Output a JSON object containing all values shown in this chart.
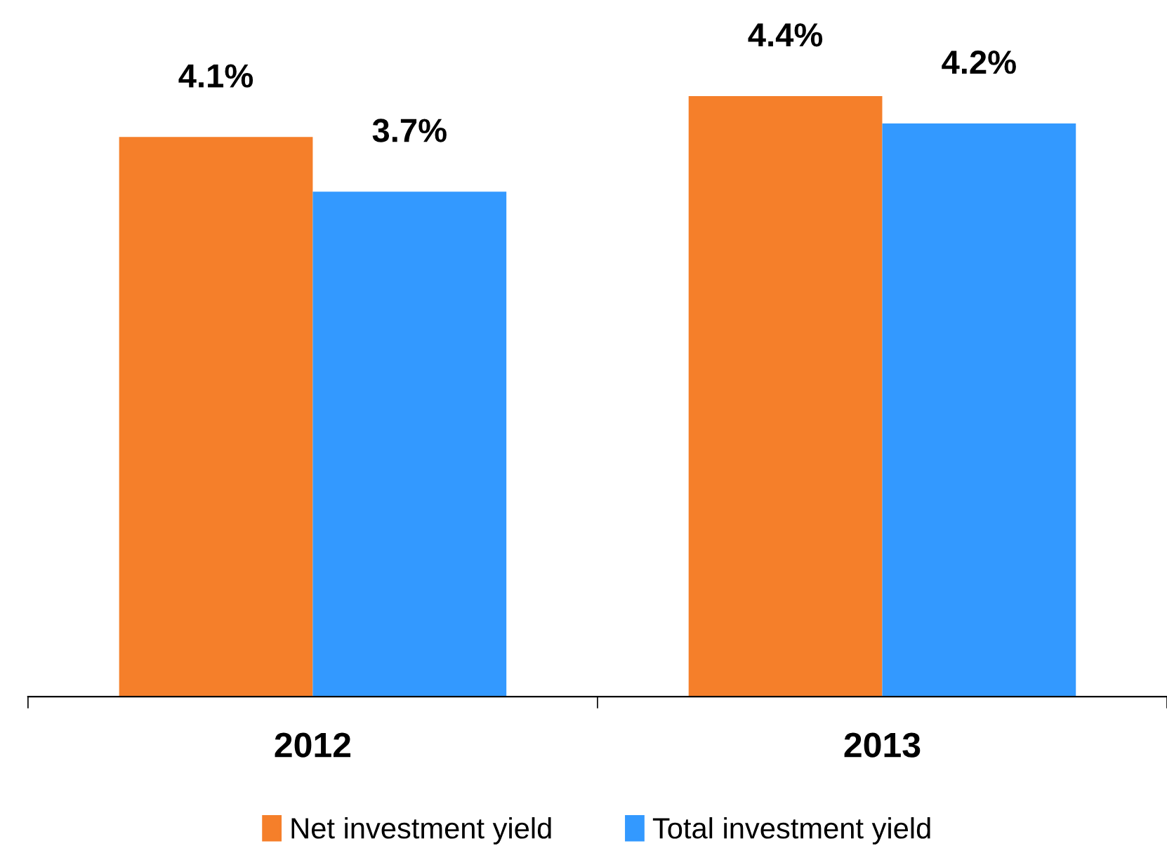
{
  "chart_data": {
    "type": "bar",
    "categories": [
      "2012",
      "2013"
    ],
    "series": [
      {
        "name": "Net investment yield",
        "color": "#f57f2a",
        "values": [
          4.1,
          4.4
        ],
        "value_labels": [
          "4.1%",
          "4.4%"
        ]
      },
      {
        "name": "Total investment yield",
        "color": "#3399ff",
        "values": [
          3.7,
          4.2
        ],
        "value_labels": [
          "3.7%",
          "4.2%"
        ]
      }
    ],
    "grid": false,
    "legend": "bottom",
    "tick_labels": "x"
  }
}
